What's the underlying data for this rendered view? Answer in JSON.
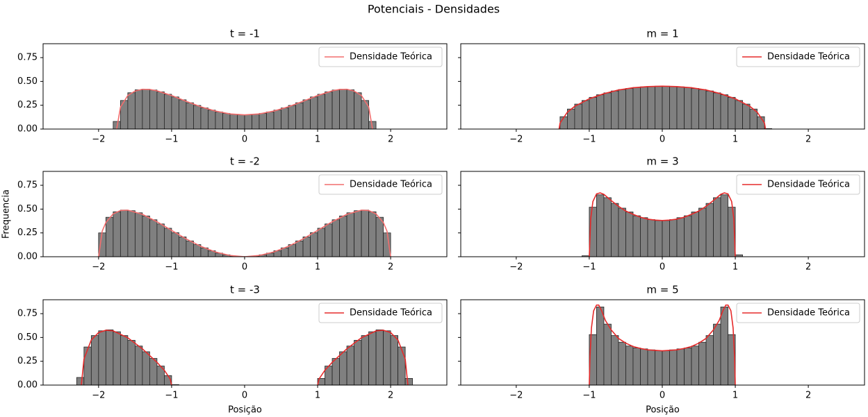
{
  "title": "Potenciais - Densidades",
  "chart_data": [
    {
      "type": "histogram",
      "title": "t = -1",
      "color": "#808080",
      "legend": "upper right",
      "bins": [
        -1.8,
        -1.7,
        -1.6,
        -1.5,
        -1.4,
        -1.3,
        -1.2,
        -1.1,
        -1.0,
        -0.9,
        -0.8,
        -0.7,
        -0.6,
        -0.5,
        -0.4,
        -0.3,
        -0.2,
        -0.1,
        0,
        0.1,
        0.2,
        0.3,
        0.4,
        0.5,
        0.6,
        0.7,
        0.8,
        0.9,
        1.0,
        1.1,
        1.2,
        1.3,
        1.4,
        1.5,
        1.6,
        1.7,
        1.8
      ],
      "values": [
        0.08,
        0.3,
        0.381,
        0.412,
        0.419,
        0.41,
        0.391,
        0.365,
        0.337,
        0.307,
        0.276,
        0.248,
        0.222,
        0.199,
        0.18,
        0.165,
        0.155,
        0.15,
        0.15,
        0.155,
        0.165,
        0.18,
        0.199,
        0.222,
        0.248,
        0.276,
        0.307,
        0.337,
        0.365,
        0.391,
        0.41,
        0.419,
        0.412,
        0.381,
        0.3,
        0.08
      ],
      "series": [
        {
          "name": "Densidade Teórica",
          "color": "#f26d6d",
          "x": [
            -1.752,
            -1.7,
            -1.6,
            -1.5,
            -1.4,
            -1.3,
            -1.2,
            -1.0,
            -0.8,
            -0.6,
            -0.4,
            -0.2,
            0,
            0.2,
            0.4,
            0.6,
            0.8,
            1.0,
            1.2,
            1.3,
            1.4,
            1.5,
            1.6,
            1.7,
            1.752
          ],
          "values": [
            0,
            0.231,
            0.352,
            0.399,
            0.418,
            0.416,
            0.401,
            0.352,
            0.291,
            0.234,
            0.189,
            0.159,
            0.149,
            0.159,
            0.189,
            0.234,
            0.291,
            0.352,
            0.401,
            0.416,
            0.418,
            0.399,
            0.352,
            0.231,
            0
          ]
        }
      ],
      "xlim": [
        -2.76,
        2.77
      ],
      "xticks": [
        {
          "value": -2,
          "label": "−2"
        },
        {
          "value": -1,
          "label": "−1"
        },
        0,
        1,
        2
      ],
      "ylim": [
        0,
        0.896
      ],
      "yticks": [
        {
          "value": 0,
          "label": "0.00"
        },
        {
          "value": 0.25,
          "label": "0.25"
        },
        {
          "value": 0.5,
          "label": "0.50"
        },
        {
          "value": 0.75,
          "label": "0.75"
        }
      ]
    },
    {
      "type": "histogram",
      "title": "m = 1",
      "color": "#808080",
      "legend": "upper right",
      "bins": [
        -1.4,
        -1.3,
        -1.2,
        -1.1,
        -1.0,
        -0.9,
        -0.8,
        -0.7,
        -0.6,
        -0.5,
        -0.4,
        -0.3,
        -0.2,
        -0.1,
        0,
        0.1,
        0.2,
        0.3,
        0.4,
        0.5,
        0.6,
        0.7,
        0.8,
        0.9,
        1.0,
        1.1,
        1.2,
        1.3,
        1.4,
        1.5
      ],
      "values": [
        0.13,
        0.21,
        0.262,
        0.3,
        0.333,
        0.36,
        0.38,
        0.4,
        0.415,
        0.427,
        0.437,
        0.443,
        0.448,
        0.45,
        0.45,
        0.448,
        0.443,
        0.437,
        0.427,
        0.415,
        0.4,
        0.38,
        0.36,
        0.333,
        0.3,
        0.262,
        0.21,
        0.13,
        0.005
      ],
      "series": [
        {
          "name": "Densidade Teórica",
          "color": "#e62a2a",
          "x": [
            -1.414,
            -1.4,
            -1.3,
            -1.2,
            -1.0,
            -0.8,
            -0.6,
            -0.4,
            -0.2,
            0,
            0.2,
            0.4,
            0.6,
            0.8,
            1.0,
            1.2,
            1.3,
            1.4,
            1.414
          ],
          "values": [
            0,
            0.063,
            0.177,
            0.238,
            0.318,
            0.371,
            0.41,
            0.434,
            0.446,
            0.45,
            0.446,
            0.434,
            0.41,
            0.371,
            0.318,
            0.238,
            0.177,
            0.063,
            0
          ]
        }
      ],
      "xlim": [
        -2.76,
        2.77
      ],
      "xticks": [
        {
          "value": -2,
          "label": "−2"
        },
        {
          "value": -1,
          "label": "−1"
        },
        0,
        1,
        2
      ],
      "ylim": [
        0,
        0.896
      ],
      "yticks": [
        0,
        0.25,
        0.5,
        0.75
      ]
    },
    {
      "type": "histogram",
      "title": "t = -2",
      "color": "#808080",
      "legend": "upper right",
      "ylabel": "Frequencia",
      "bins": [
        -2.0,
        -1.9,
        -1.8,
        -1.7,
        -1.6,
        -1.5,
        -1.4,
        -1.3,
        -1.2,
        -1.1,
        -1.0,
        -0.9,
        -0.8,
        -0.7,
        -0.6,
        -0.5,
        -0.4,
        -0.3,
        -0.2,
        -0.1,
        0,
        0.1,
        0.2,
        0.3,
        0.4,
        0.5,
        0.6,
        0.7,
        0.8,
        0.9,
        1.0,
        1.1,
        1.2,
        1.3,
        1.4,
        1.5,
        1.6,
        1.7,
        1.8,
        1.9,
        2.0
      ],
      "values": [
        0.25,
        0.414,
        0.472,
        0.49,
        0.483,
        0.461,
        0.428,
        0.388,
        0.344,
        0.299,
        0.253,
        0.208,
        0.166,
        0.127,
        0.093,
        0.063,
        0.038,
        0.02,
        0.007,
        0.001,
        0.001,
        0.007,
        0.02,
        0.038,
        0.063,
        0.093,
        0.127,
        0.166,
        0.208,
        0.253,
        0.299,
        0.344,
        0.388,
        0.428,
        0.461,
        0.483,
        0.49,
        0.472,
        0.414,
        0.25
      ],
      "series": [
        {
          "name": "Densidade Teórica",
          "color": "#f26d6d",
          "x": [
            -2,
            -1.95,
            -1.9,
            -1.8,
            -1.7,
            -1.6,
            -1.4,
            -1.2,
            -1.0,
            -0.8,
            -0.6,
            -0.4,
            -0.2,
            0,
            0.2,
            0.4,
            0.6,
            0.8,
            1.0,
            1.2,
            1.4,
            1.6,
            1.7,
            1.8,
            1.9,
            1.95,
            2
          ],
          "values": [
            0,
            0.269,
            0.359,
            0.45,
            0.485,
            0.489,
            0.445,
            0.367,
            0.276,
            0.187,
            0.109,
            0.05,
            0.013,
            0,
            0.013,
            0.05,
            0.109,
            0.187,
            0.276,
            0.367,
            0.445,
            0.489,
            0.485,
            0.45,
            0.359,
            0.269,
            0
          ]
        }
      ],
      "xlim": [
        -2.76,
        2.77
      ],
      "xticks": [
        {
          "value": -2,
          "label": "−2"
        },
        {
          "value": -1,
          "label": "−1"
        },
        0,
        1,
        2
      ],
      "ylim": [
        0,
        0.896
      ],
      "yticks": [
        {
          "value": 0,
          "label": "0.00"
        },
        {
          "value": 0.25,
          "label": "0.25"
        },
        {
          "value": 0.5,
          "label": "0.50"
        },
        {
          "value": 0.75,
          "label": "0.75"
        }
      ]
    },
    {
      "type": "histogram",
      "title": "m = 3",
      "color": "#808080",
      "legend": "upper right",
      "bins": [
        -1.1,
        -1.0,
        -0.9,
        -0.8,
        -0.7,
        -0.6,
        -0.5,
        -0.4,
        -0.3,
        -0.2,
        -0.1,
        0,
        0.1,
        0.2,
        0.3,
        0.4,
        0.5,
        0.6,
        0.7,
        0.8,
        0.9,
        1.0,
        1.1
      ],
      "values": [
        0.01,
        0.52,
        0.65,
        0.62,
        0.56,
        0.51,
        0.47,
        0.43,
        0.41,
        0.39,
        0.38,
        0.38,
        0.39,
        0.41,
        0.43,
        0.47,
        0.51,
        0.56,
        0.62,
        0.65,
        0.52,
        0.02
      ],
      "series": [
        {
          "name": "Densidade Teórica",
          "color": "#e62a2a",
          "x": [
            -1,
            -0.98,
            -0.95,
            -0.9,
            -0.85,
            -0.8,
            -0.7,
            -0.6,
            -0.5,
            -0.4,
            -0.3,
            -0.2,
            -0.1,
            0,
            0.1,
            0.2,
            0.3,
            0.4,
            0.5,
            0.6,
            0.7,
            0.8,
            0.85,
            0.9,
            0.95,
            0.98,
            1
          ],
          "values": [
            0,
            0.4,
            0.58,
            0.66,
            0.67,
            0.655,
            0.59,
            0.53,
            0.48,
            0.445,
            0.415,
            0.395,
            0.385,
            0.38,
            0.385,
            0.395,
            0.415,
            0.445,
            0.48,
            0.53,
            0.59,
            0.655,
            0.67,
            0.66,
            0.58,
            0.4,
            0
          ]
        }
      ],
      "xlim": [
        -2.76,
        2.77
      ],
      "xticks": [
        {
          "value": -2,
          "label": "−2"
        },
        {
          "value": -1,
          "label": "−1"
        },
        0,
        1,
        2
      ],
      "ylim": [
        0,
        0.896
      ],
      "yticks": [
        0,
        0.25,
        0.5,
        0.75
      ]
    },
    {
      "type": "histogram",
      "title": "t = -3",
      "color": "#808080",
      "legend": "upper right",
      "xlabel": "Posição",
      "bins": [
        -2.3,
        -2.2,
        -2.1,
        -2.0,
        -1.9,
        -1.8,
        -1.7,
        -1.6,
        -1.5,
        -1.4,
        -1.3,
        -1.2,
        -1.1,
        -1.0,
        -0.9,
        -0.8,
        -0.7,
        -0.6,
        -0.5,
        -0.4,
        -0.3,
        -0.2,
        -0.1,
        0,
        0.1,
        0.2,
        0.3,
        0.4,
        0.5,
        0.6,
        0.7,
        0.8,
        0.9,
        1.0,
        1.1,
        1.2,
        1.3,
        1.4,
        1.5,
        1.6,
        1.7,
        1.8,
        1.9,
        2.0,
        2.1,
        2.2,
        2.3
      ],
      "values": [
        0.08,
        0.4,
        0.52,
        0.57,
        0.58,
        0.56,
        0.52,
        0.47,
        0.41,
        0.35,
        0.28,
        0.2,
        0.1,
        0.005,
        0,
        0,
        0,
        0,
        0,
        0,
        0,
        0,
        0,
        0,
        0,
        0,
        0,
        0,
        0,
        0,
        0,
        0,
        0,
        0.07,
        0.2,
        0.28,
        0.35,
        0.41,
        0.47,
        0.52,
        0.56,
        0.58,
        0.57,
        0.52,
        0.4,
        0.07
      ],
      "series": [
        {
          "name": "Densidade Teórica",
          "color": "#e62a2a",
          "x": [
            -2.236,
            -2.2,
            -2.1,
            -2.0,
            -1.9,
            -1.8,
            -1.6,
            -1.4,
            -1.2,
            -1.1,
            -1.02,
            -1.0,
            0,
            1.0,
            1.02,
            1.1,
            1.2,
            1.4,
            1.6,
            1.8,
            1.9,
            2.0,
            2.1,
            2.2,
            2.236
          ],
          "values": [
            0,
            0.274,
            0.474,
            0.551,
            0.576,
            0.569,
            0.497,
            0.381,
            0.239,
            0.156,
            0.065,
            0,
            null,
            0,
            0.065,
            0.156,
            0.239,
            0.381,
            0.497,
            0.569,
            0.576,
            0.551,
            0.474,
            0.274,
            0
          ]
        }
      ],
      "xlim": [
        -2.76,
        2.77
      ],
      "xticks": [
        {
          "value": -2,
          "label": "−2"
        },
        {
          "value": -1,
          "label": "−1"
        },
        0,
        1,
        2
      ],
      "ylim": [
        0,
        0.896
      ],
      "yticks": [
        {
          "value": 0,
          "label": "0.00"
        },
        {
          "value": 0.25,
          "label": "0.25"
        },
        {
          "value": 0.5,
          "label": "0.50"
        },
        {
          "value": 0.75,
          "label": "0.75"
        }
      ]
    },
    {
      "type": "histogram",
      "title": "m = 5",
      "color": "#808080",
      "legend": "upper right",
      "xlabel": "Posição",
      "bins": [
        -1.0,
        -0.9,
        -0.8,
        -0.7,
        -0.6,
        -0.5,
        -0.4,
        -0.3,
        -0.2,
        -0.1,
        0,
        0.1,
        0.2,
        0.3,
        0.4,
        0.5,
        0.6,
        0.7,
        0.8,
        0.9,
        1.0
      ],
      "values": [
        0.53,
        0.82,
        0.64,
        0.52,
        0.45,
        0.41,
        0.39,
        0.38,
        0.37,
        0.36,
        0.36,
        0.37,
        0.38,
        0.39,
        0.41,
        0.45,
        0.52,
        0.64,
        0.82,
        0.53
      ],
      "series": [
        {
          "name": "Densidade Teórica",
          "color": "#e62a2a",
          "x": [
            -1,
            -0.99,
            -0.97,
            -0.94,
            -0.9,
            -0.87,
            -0.83,
            -0.78,
            -0.7,
            -0.6,
            -0.5,
            -0.4,
            -0.3,
            -0.2,
            -0.1,
            0,
            0.1,
            0.2,
            0.3,
            0.4,
            0.5,
            0.6,
            0.7,
            0.78,
            0.83,
            0.87,
            0.9,
            0.94,
            0.97,
            0.99,
            1
          ],
          "values": [
            0,
            0.3,
            0.6,
            0.78,
            0.84,
            0.84,
            0.78,
            0.68,
            0.58,
            0.49,
            0.44,
            0.405,
            0.385,
            0.37,
            0.365,
            0.36,
            0.365,
            0.37,
            0.385,
            0.405,
            0.44,
            0.49,
            0.58,
            0.68,
            0.78,
            0.84,
            0.84,
            0.78,
            0.6,
            0.3,
            0
          ]
        }
      ],
      "xlim": [
        -2.76,
        2.77
      ],
      "xticks": [
        {
          "value": -2,
          "label": "−2"
        },
        {
          "value": -1,
          "label": "−1"
        },
        0,
        1,
        2
      ],
      "ylim": [
        0,
        0.896
      ],
      "yticks": [
        0,
        0.25,
        0.5,
        0.75
      ]
    }
  ]
}
